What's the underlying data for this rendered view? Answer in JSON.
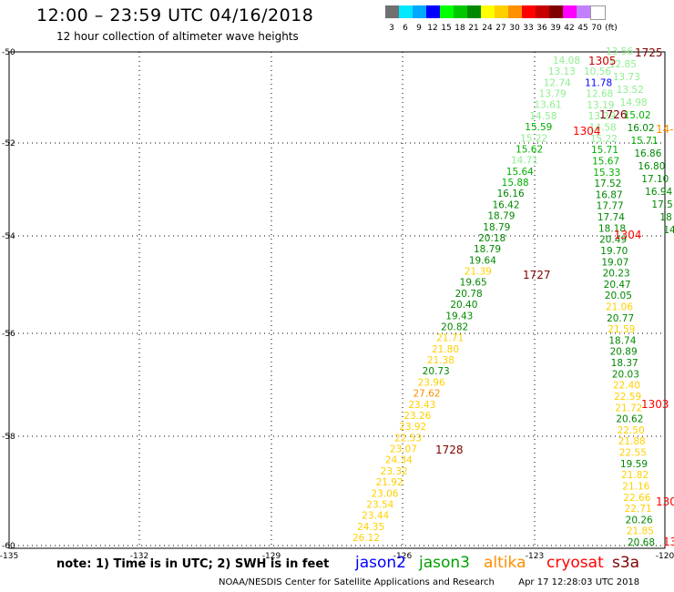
{
  "header": {
    "title": "12:00 – 23:59 UTC 04/16/2018",
    "subtitle": "12 hour collection of altimeter wave heights"
  },
  "scale": {
    "unit": "(ft)",
    "colors": [
      "#707070",
      "#00e8ff",
      "#00a8ff",
      "#0000ff",
      "#00ff00",
      "#00c800",
      "#008800",
      "#ffff00",
      "#ffd000",
      "#ff9000",
      "#ff0000",
      "#c80000",
      "#800000",
      "#ff00ff",
      "#c080ff",
      "#ffffff"
    ],
    "labels": [
      "3",
      "6",
      "9",
      "12",
      "15",
      "18",
      "21",
      "24",
      "27",
      "30",
      "33",
      "36",
      "39",
      "42",
      "45",
      "70"
    ]
  },
  "axes": {
    "lat_labels": [
      "-50",
      "-52",
      "-54",
      "-56",
      "-58",
      "-60"
    ],
    "lon_labels": [
      "-135",
      "-132",
      "-129",
      "-126",
      "-123",
      "-120"
    ]
  },
  "passes": [
    {
      "label": "1725",
      "color": "#800000"
    },
    {
      "label": "1305",
      "color": "#c80000"
    },
    {
      "label": "1726",
      "color": "#800000"
    },
    {
      "label": "1304",
      "color": "#ff0000"
    },
    {
      "label": "14-",
      "color": "#ff9000"
    },
    {
      "label": "1304",
      "color": "#ff0000"
    },
    {
      "label": "1727",
      "color": "#800000"
    },
    {
      "label": "1303",
      "color": "#ff0000"
    },
    {
      "label": "1728",
      "color": "#800000"
    },
    {
      "label": "130",
      "color": "#ff0000"
    },
    {
      "label": "13",
      "color": "#ff0000"
    }
  ],
  "track_a": [
    {
      "v": "14.08",
      "c": "#90ee90"
    },
    {
      "v": "13.13",
      "c": "#90ee90"
    },
    {
      "v": "12.74",
      "c": "#90ee90"
    },
    {
      "v": "13.79",
      "c": "#90ee90"
    },
    {
      "v": "13.61",
      "c": "#90ee90"
    },
    {
      "v": "14.58",
      "c": "#90ee90"
    },
    {
      "v": "15.59",
      "c": "#00b000"
    },
    {
      "v": "15.22",
      "c": "#90ee90"
    },
    {
      "v": "15.62",
      "c": "#00b000"
    },
    {
      "v": "14.71",
      "c": "#90ee90"
    },
    {
      "v": "15.64",
      "c": "#00b000"
    },
    {
      "v": "15.88",
      "c": "#00b000"
    },
    {
      "v": "16.16",
      "c": "#008800"
    },
    {
      "v": "16.42",
      "c": "#008800"
    },
    {
      "v": "18.79",
      "c": "#008800"
    },
    {
      "v": "18.79",
      "c": "#008800"
    },
    {
      "v": "20.18",
      "c": "#008800"
    },
    {
      "v": "18.79",
      "c": "#008800"
    },
    {
      "v": "19.64",
      "c": "#008800"
    },
    {
      "v": "21.39",
      "c": "#ffd000"
    },
    {
      "v": "19.65",
      "c": "#008800"
    },
    {
      "v": "20.78",
      "c": "#008800"
    },
    {
      "v": "20.40",
      "c": "#008800"
    },
    {
      "v": "19.43",
      "c": "#008800"
    },
    {
      "v": "20.82",
      "c": "#008800"
    },
    {
      "v": "21.71",
      "c": "#ffd000"
    },
    {
      "v": "21.80",
      "c": "#ffd000"
    },
    {
      "v": "21.38",
      "c": "#ffd000"
    },
    {
      "v": "20.73",
      "c": "#008800"
    },
    {
      "v": "23.96",
      "c": "#ffd000"
    },
    {
      "v": "27.62",
      "c": "#ff9000"
    },
    {
      "v": "23.43",
      "c": "#ffd000"
    },
    {
      "v": "23.26",
      "c": "#ffd000"
    },
    {
      "v": "23.92",
      "c": "#ffd000"
    },
    {
      "v": "22.53",
      "c": "#ffd000"
    },
    {
      "v": "23.07",
      "c": "#ffd000"
    },
    {
      "v": "24.34",
      "c": "#ffd000"
    },
    {
      "v": "23.32",
      "c": "#ffd000"
    },
    {
      "v": "21.92",
      "c": "#ffd000"
    },
    {
      "v": "23.06",
      "c": "#ffd000"
    },
    {
      "v": "23.54",
      "c": "#ffd000"
    },
    {
      "v": "23.44",
      "c": "#ffd000"
    },
    {
      "v": "24.35",
      "c": "#ffd000"
    },
    {
      "v": "26.12",
      "c": "#ffd000"
    }
  ],
  "track_b": [
    {
      "v": "10.56",
      "c": "#90ee90"
    },
    {
      "v": "11.78",
      "c": "#0000ff"
    },
    {
      "v": "12.68",
      "c": "#90ee90"
    },
    {
      "v": "13.19",
      "c": "#90ee90"
    },
    {
      "v": "13.29",
      "c": "#90ee90"
    },
    {
      "v": "14.58",
      "c": "#90ee90"
    },
    {
      "v": "15.22",
      "c": "#90ee90"
    },
    {
      "v": "15.71",
      "c": "#00b000"
    },
    {
      "v": "15.67",
      "c": "#00b000"
    },
    {
      "v": "15.33",
      "c": "#00b000"
    },
    {
      "v": "17.52",
      "c": "#008800"
    },
    {
      "v": "16.87",
      "c": "#008800"
    },
    {
      "v": "17.77",
      "c": "#008800"
    },
    {
      "v": "17.74",
      "c": "#008800"
    },
    {
      "v": "18.18",
      "c": "#008800"
    },
    {
      "v": "20.49",
      "c": "#008800"
    },
    {
      "v": "19.70",
      "c": "#008800"
    },
    {
      "v": "19.07",
      "c": "#008800"
    },
    {
      "v": "20.23",
      "c": "#008800"
    },
    {
      "v": "20.47",
      "c": "#008800"
    },
    {
      "v": "20.05",
      "c": "#008800"
    },
    {
      "v": "21.06",
      "c": "#ffd000"
    },
    {
      "v": "20.77",
      "c": "#008800"
    },
    {
      "v": "21.59",
      "c": "#ffd000"
    },
    {
      "v": "18.74",
      "c": "#008800"
    },
    {
      "v": "20.89",
      "c": "#008800"
    },
    {
      "v": "18.37",
      "c": "#008800"
    },
    {
      "v": "20.03",
      "c": "#008800"
    },
    {
      "v": "22.40",
      "c": "#ffd000"
    },
    {
      "v": "22.59",
      "c": "#ffd000"
    },
    {
      "v": "21.72",
      "c": "#ffd000"
    },
    {
      "v": "20.62",
      "c": "#008800"
    },
    {
      "v": "22.50",
      "c": "#ffd000"
    },
    {
      "v": "21.88",
      "c": "#ffd000"
    },
    {
      "v": "22.55",
      "c": "#ffd000"
    },
    {
      "v": "19.59",
      "c": "#008800"
    },
    {
      "v": "21.82",
      "c": "#ffd000"
    },
    {
      "v": "21.16",
      "c": "#ffd000"
    },
    {
      "v": "22.66",
      "c": "#ffd000"
    },
    {
      "v": "22.71",
      "c": "#ffd000"
    },
    {
      "v": "20.26",
      "c": "#008800"
    },
    {
      "v": "21.85",
      "c": "#ffd000"
    },
    {
      "v": "20.68",
      "c": "#008800"
    }
  ],
  "track_c": [
    {
      "v": "13.56",
      "c": "#90ee90"
    },
    {
      "v": "12.85",
      "c": "#90ee90"
    },
    {
      "v": "13.73",
      "c": "#90ee90"
    },
    {
      "v": "13.52",
      "c": "#90ee90"
    },
    {
      "v": "14.98",
      "c": "#90ee90"
    },
    {
      "v": "15.02",
      "c": "#00b000"
    },
    {
      "v": "16.02",
      "c": "#008800"
    },
    {
      "v": "15.71",
      "c": "#00b000"
    },
    {
      "v": "16.86",
      "c": "#008800"
    },
    {
      "v": "16.80",
      "c": "#008800"
    },
    {
      "v": "17.10",
      "c": "#008800"
    },
    {
      "v": "16.94",
      "c": "#008800"
    },
    {
      "v": "17.5",
      "c": "#008800"
    },
    {
      "v": "18",
      "c": "#008800"
    },
    {
      "v": "14",
      "c": "#008800"
    }
  ],
  "note": "note: 1) Time is in UTC; 2) SWH is in feet",
  "legend": [
    {
      "label": "jason2",
      "color": "#0000ff"
    },
    {
      "label": "jason3",
      "color": "#00a000"
    },
    {
      "label": "altika",
      "color": "#ff9000"
    },
    {
      "label": "cryosat",
      "color": "#ff0000"
    },
    {
      "label": "s3a",
      "color": "#800000"
    }
  ],
  "footer": {
    "credit": "NOAA/NESDIS Center for Satellite Applications and Research",
    "timestamp": "Apr 17 12:28:03 UTC 2018"
  }
}
